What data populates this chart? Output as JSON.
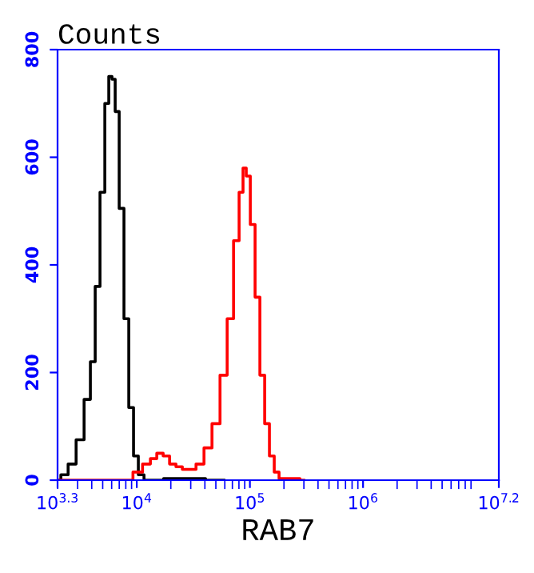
{
  "chart_data": {
    "type": "step",
    "ylabel": "Counts",
    "xlabel": "RAB7",
    "log": "x",
    "xlim": [
      1995,
      15850000
    ],
    "ylim": [
      0,
      800
    ],
    "xticks": [
      {
        "value": 1995,
        "label": "10$^{3.3}$"
      },
      {
        "value": 10000,
        "label": "10$^{4}$"
      },
      {
        "value": 100000,
        "label": "10$^{5}$"
      },
      {
        "value": 1000000,
        "label": "10$^{6}$"
      },
      {
        "value": 15850000,
        "label": "10$^{7.2}$"
      }
    ],
    "yticks": [
      0,
      200,
      400,
      600,
      800
    ],
    "grid": false,
    "legend": false,
    "series": [
      {
        "color": "#000000",
        "x": [
          1995,
          2274,
          2673,
          3147,
          3700,
          4083,
          4500,
          4965,
          5475,
          5840,
          6237,
          6653,
          7330,
          8085,
          8913,
          9817,
          10834,
          12340,
          22170,
          58880
        ],
        "values": [
          0,
          10,
          30,
          75,
          150,
          220,
          360,
          535,
          700,
          750,
          745,
          685,
          505,
          300,
          135,
          45,
          10,
          0,
          3,
          0
        ]
      },
      {
        "color": "#ff0000",
        "x": [
          1995,
          8356,
          10160,
          12340,
          14060,
          16000,
          18230,
          20760,
          23650,
          26920,
          30680,
          36120,
          42460,
          50000,
          58880,
          67000,
          76380,
          84140,
          89740,
          95940,
          105700,
          116500,
          128500,
          141600,
          156000,
          172200,
          189700,
          254100,
          299200
        ],
        "values": [
          0,
          0,
          15,
          30,
          40,
          50,
          45,
          30,
          25,
          20,
          20,
          30,
          60,
          105,
          195,
          300,
          445,
          535,
          580,
          565,
          475,
          340,
          195,
          105,
          45,
          15,
          3,
          3,
          0
        ]
      }
    ]
  }
}
